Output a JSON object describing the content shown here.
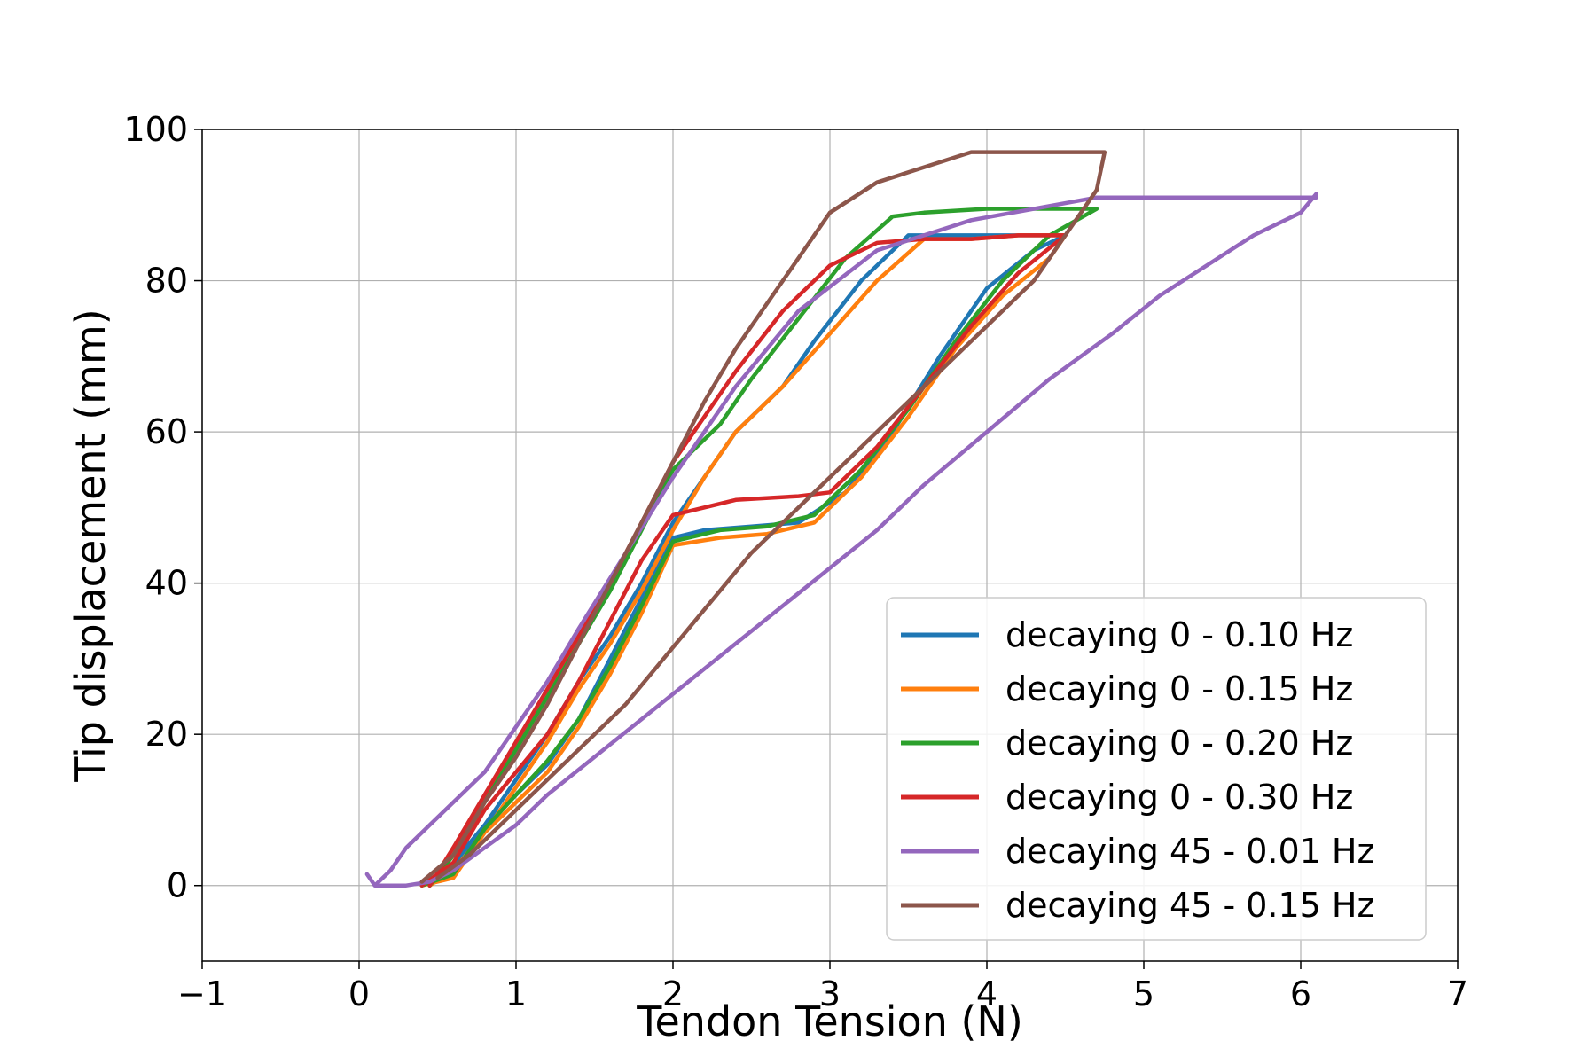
{
  "chart_data": {
    "type": "line",
    "title": "",
    "xlabel": "Tendon Tension (N)",
    "ylabel": "Tip displacement (mm)",
    "xlim": [
      -1,
      7
    ],
    "ylim": [
      -10,
      100
    ],
    "xticks": [
      -1,
      0,
      1,
      2,
      3,
      4,
      5,
      6,
      7
    ],
    "xtick_labels": [
      "−1",
      "0",
      "1",
      "2",
      "3",
      "4",
      "5",
      "6",
      "7"
    ],
    "yticks": [
      0,
      20,
      40,
      60,
      80,
      100
    ],
    "ytick_labels": [
      "0",
      "20",
      "40",
      "60",
      "80",
      "100"
    ],
    "grid": true,
    "legend_position": "lower-right",
    "series": [
      {
        "name": "decaying 0 - 0.10 Hz",
        "color": "#1f77b4",
        "x": [
          0.4,
          0.6,
          0.8,
          1.0,
          1.2,
          1.4,
          1.6,
          1.8,
          2.0,
          2.2,
          2.5,
          2.8,
          3.1,
          3.4,
          3.7,
          4.0,
          4.3,
          4.5,
          4.2,
          3.8,
          3.5,
          3.2,
          2.9,
          2.7,
          2.4,
          2.2,
          2.0,
          1.8,
          1.6,
          1.4,
          1.2,
          1.0,
          0.8,
          0.6,
          0.45
        ],
        "y": [
          0,
          2,
          8,
          12,
          16,
          22,
          30,
          38,
          46,
          47,
          47.5,
          48,
          52,
          60,
          70,
          79,
          84,
          86,
          86,
          86,
          86,
          80,
          72,
          66,
          60,
          54,
          48,
          40,
          33,
          27,
          20,
          14,
          8,
          3,
          0
        ]
      },
      {
        "name": "decaying 0 - 0.15 Hz",
        "color": "#ff7f0e",
        "x": [
          0.4,
          0.6,
          0.8,
          1.0,
          1.2,
          1.4,
          1.6,
          1.8,
          2.0,
          2.3,
          2.6,
          2.9,
          3.2,
          3.5,
          3.8,
          4.1,
          4.4,
          4.5,
          4.2,
          3.9,
          3.6,
          3.3,
          3.0,
          2.7,
          2.4,
          2.2,
          2.0,
          1.8,
          1.6,
          1.4,
          1.2,
          1.0,
          0.8,
          0.6,
          0.45
        ],
        "y": [
          0,
          1,
          7,
          11,
          15,
          21,
          28,
          36,
          45,
          46,
          46.5,
          48,
          54,
          62,
          71,
          78,
          83,
          86,
          86,
          85.5,
          85.5,
          80,
          73,
          66,
          60,
          54,
          47,
          39,
          32,
          26,
          19,
          13,
          7,
          2,
          0
        ]
      },
      {
        "name": "decaying 0 - 0.20 Hz",
        "color": "#2ca02c",
        "x": [
          0.4,
          0.6,
          0.8,
          1.0,
          1.2,
          1.4,
          1.6,
          1.8,
          2.0,
          2.3,
          2.6,
          2.9,
          3.2,
          3.5,
          3.8,
          4.1,
          4.4,
          4.7,
          4.4,
          4.0,
          3.6,
          3.4,
          3.1,
          2.8,
          2.5,
          2.3,
          2.0,
          1.8,
          1.6,
          1.4,
          1.2,
          1.0,
          0.8,
          0.6,
          0.45
        ],
        "y": [
          0,
          1.5,
          7.5,
          12,
          16.5,
          22,
          29,
          37,
          45.5,
          47,
          47.5,
          49,
          55,
          63,
          72,
          80,
          86,
          89.5,
          89.5,
          89.5,
          89,
          88.5,
          83,
          75,
          67,
          61,
          55,
          47,
          39,
          32,
          25,
          18,
          11,
          4,
          0
        ]
      },
      {
        "name": "decaying 0 - 0.30 Hz",
        "color": "#d62728",
        "x": [
          0.4,
          0.6,
          0.8,
          1.0,
          1.2,
          1.4,
          1.6,
          1.8,
          2.0,
          2.4,
          2.8,
          3.0,
          3.3,
          3.6,
          3.9,
          4.2,
          4.5,
          4.2,
          3.9,
          3.6,
          3.3,
          3.0,
          2.7,
          2.4,
          2.2,
          2.0,
          1.8,
          1.6,
          1.4,
          1.2,
          1.0,
          0.8,
          0.6,
          0.45
        ],
        "y": [
          0,
          3,
          10,
          15,
          20,
          27,
          35,
          43,
          49,
          51,
          51.5,
          52,
          58,
          66,
          74,
          81,
          86,
          86,
          85.5,
          85.5,
          85,
          82,
          76,
          68,
          62,
          56,
          48,
          40,
          33,
          26,
          19,
          12,
          5,
          0
        ]
      },
      {
        "name": "decaying 45 - 0.01 Hz",
        "color": "#9467bd",
        "x": [
          0.05,
          0.1,
          0.2,
          0.3,
          0.45,
          0.6,
          0.8,
          1.0,
          1.2,
          1.5,
          1.8,
          2.1,
          2.4,
          2.7,
          3.0,
          3.3,
          3.6,
          4.0,
          4.4,
          4.8,
          5.1,
          5.4,
          5.7,
          6.0,
          6.1,
          6.1,
          5.5,
          4.7,
          3.9,
          3.3,
          2.8,
          2.4,
          2.0,
          1.7,
          1.4,
          1.2,
          1.0,
          0.8,
          0.6,
          0.45,
          0.3,
          0.2,
          0.1
        ],
        "y": [
          1.5,
          0,
          0,
          0,
          0.5,
          2,
          5,
          8,
          12,
          17,
          22,
          27,
          32,
          37,
          42,
          47,
          53,
          60,
          67,
          73,
          78,
          82,
          86,
          89,
          91.5,
          91,
          91,
          91,
          88,
          84,
          76,
          66,
          54,
          44,
          34,
          27,
          21,
          15,
          11,
          8,
          5,
          2,
          0
        ]
      },
      {
        "name": "decaying 45 - 0.15 Hz",
        "color": "#8c564b",
        "x": [
          0.4,
          0.6,
          0.8,
          1.0,
          1.2,
          1.4,
          1.6,
          1.8,
          2.0,
          2.2,
          2.4,
          2.6,
          2.8,
          3.0,
          3.3,
          3.6,
          3.9,
          4.2,
          4.5,
          4.75,
          4.7,
          4.5,
          4.3,
          4.0,
          3.7,
          3.4,
          3.1,
          2.8,
          2.5,
          2.3,
          2.1,
          1.9,
          1.7,
          1.5,
          1.3,
          1.1,
          0.9,
          0.7,
          0.5
        ],
        "y": [
          0.5,
          4,
          11,
          17,
          24,
          32,
          40,
          48,
          56,
          64,
          71,
          77,
          83,
          89,
          93,
          95,
          97,
          97,
          97,
          97,
          92,
          86,
          80,
          74,
          68,
          62,
          56,
          50,
          44,
          39,
          34,
          29,
          24,
          20,
          16,
          12,
          8,
          4,
          1
        ]
      }
    ]
  }
}
